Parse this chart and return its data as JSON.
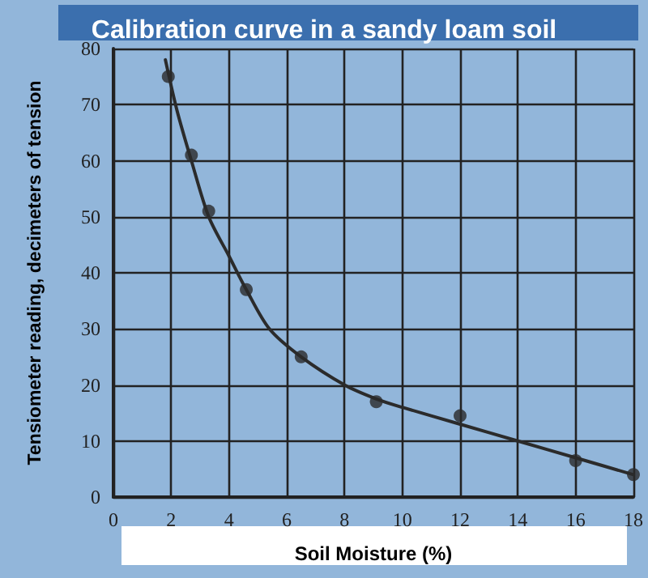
{
  "chart_data": {
    "type": "scatter",
    "title": "Calibration curve in a sandy loam soil",
    "xlabel": "Soil Moisture (%)",
    "ylabel": "Tensiometer reading, decimeters of tension",
    "xlim": [
      0,
      18
    ],
    "xticks": [
      0,
      2,
      4,
      6,
      8,
      10,
      12,
      14,
      16,
      18
    ],
    "ylim": [
      0,
      80
    ],
    "yticks": [
      0,
      10,
      20,
      30,
      40,
      50,
      60,
      70,
      80
    ],
    "grid": true,
    "marker": "circle",
    "series": [
      {
        "color": "#2b2b2b",
        "x": [
          1.9,
          2.7,
          3.3,
          4.6,
          6.5,
          9.1,
          12,
          16,
          18
        ],
        "values": [
          75,
          61,
          51,
          37,
          25,
          17,
          14.5,
          6.5,
          4
        ]
      },
      {
        "type": "line",
        "color": "#2b2b2b",
        "marker": "none",
        "x": [
          1.8,
          2.2,
          2.7,
          3.3,
          4,
          4.6,
          5.4,
          6.5,
          8,
          9.1,
          10,
          12,
          14,
          16,
          18
        ],
        "values": [
          78,
          69,
          60,
          50,
          43,
          37,
          30,
          25,
          20,
          17.5,
          16,
          13,
          10,
          7,
          4
        ]
      }
    ]
  }
}
